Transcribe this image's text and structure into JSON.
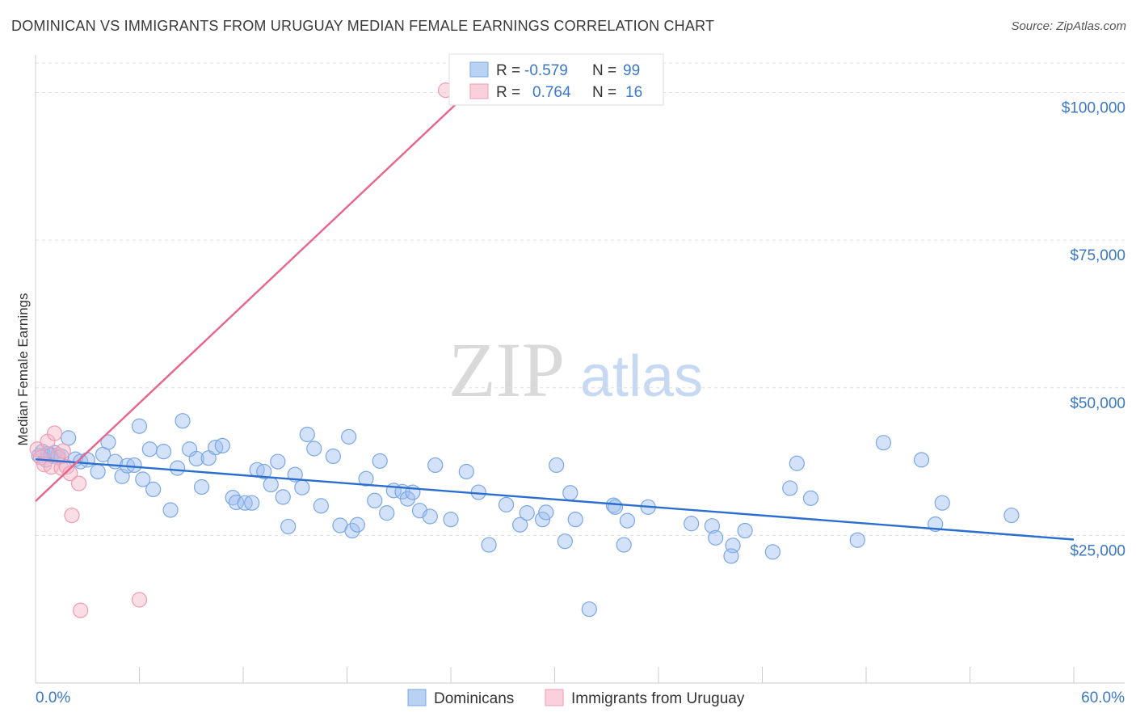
{
  "header": {
    "title": "DOMINICAN VS IMMIGRANTS FROM URUGUAY MEDIAN FEMALE EARNINGS CORRELATION CHART",
    "source": "Source: ZipAtlas.com"
  },
  "watermark": {
    "zip": "ZIP",
    "atlas": "atlas"
  },
  "legend": {
    "rows": [
      {
        "r_label": "R =",
        "r_value": "-0.579",
        "n_label": "N =",
        "n_value": "99",
        "color": "#9dbff0"
      },
      {
        "r_label": "R =",
        "r_value": "0.764",
        "n_label": "N =",
        "n_value": "16",
        "color": "#f5b5c8"
      }
    ]
  },
  "bottom_legend": [
    {
      "label": "Dominicans",
      "color": "#9dbff0"
    },
    {
      "label": "Immigrants from Uruguay",
      "color": "#f5b5c8"
    }
  ],
  "chart_data": {
    "type": "scatter",
    "xlabel": "",
    "ylabel": "Median Female Earnings",
    "xlim": [
      0,
      60
    ],
    "ylim": [
      0,
      105000
    ],
    "x_tick_labels": [
      "0.0%",
      "60.0%"
    ],
    "y_ticks": [
      25000,
      50000,
      75000,
      100000
    ],
    "y_tick_labels": [
      "$25,000",
      "$50,000",
      "$75,000",
      "$100,000"
    ],
    "grid": true,
    "series": [
      {
        "name": "Dominicans",
        "color": "#7aa7e6",
        "trend": {
          "x": [
            0,
            60
          ],
          "y": [
            37900,
            24300
          ],
          "color": "#2a6fd0"
        },
        "points": [
          [
            0.2,
            38500
          ],
          [
            0.4,
            39200
          ],
          [
            0.6,
            37800
          ],
          [
            0.9,
            38600
          ],
          [
            1.1,
            39000
          ],
          [
            1.5,
            38400
          ],
          [
            1.9,
            41500
          ],
          [
            2.3,
            37900
          ],
          [
            2.6,
            37500
          ],
          [
            3.0,
            37800
          ],
          [
            3.6,
            35800
          ],
          [
            3.9,
            38700
          ],
          [
            4.2,
            40800
          ],
          [
            4.6,
            37500
          ],
          [
            5.0,
            35000
          ],
          [
            5.3,
            36800
          ],
          [
            5.7,
            36900
          ],
          [
            6.0,
            43500
          ],
          [
            6.2,
            34500
          ],
          [
            6.6,
            39600
          ],
          [
            6.8,
            32800
          ],
          [
            7.4,
            39200
          ],
          [
            7.8,
            29300
          ],
          [
            8.2,
            36400
          ],
          [
            8.5,
            44400
          ],
          [
            8.9,
            39600
          ],
          [
            9.3,
            38000
          ],
          [
            9.6,
            33200
          ],
          [
            10.0,
            38100
          ],
          [
            10.4,
            39900
          ],
          [
            10.8,
            40200
          ],
          [
            11.4,
            31400
          ],
          [
            11.6,
            30600
          ],
          [
            12.1,
            30500
          ],
          [
            12.5,
            30500
          ],
          [
            12.8,
            36100
          ],
          [
            13.2,
            35800
          ],
          [
            13.6,
            33600
          ],
          [
            14.0,
            37500
          ],
          [
            14.3,
            31500
          ],
          [
            14.6,
            26500
          ],
          [
            15.0,
            35300
          ],
          [
            15.4,
            33100
          ],
          [
            15.7,
            42100
          ],
          [
            16.1,
            39700
          ],
          [
            16.5,
            30000
          ],
          [
            17.2,
            38400
          ],
          [
            17.6,
            26700
          ],
          [
            18.1,
            41700
          ],
          [
            18.3,
            25800
          ],
          [
            18.6,
            26800
          ],
          [
            19.1,
            34600
          ],
          [
            19.6,
            30900
          ],
          [
            19.9,
            37600
          ],
          [
            20.3,
            28800
          ],
          [
            20.7,
            32600
          ],
          [
            21.2,
            32400
          ],
          [
            21.5,
            31200
          ],
          [
            21.8,
            32300
          ],
          [
            22.2,
            29200
          ],
          [
            22.8,
            28200
          ],
          [
            23.1,
            36900
          ],
          [
            24.0,
            27700
          ],
          [
            24.9,
            35800
          ],
          [
            25.6,
            32300
          ],
          [
            26.2,
            23400
          ],
          [
            27.2,
            30200
          ],
          [
            28.0,
            26800
          ],
          [
            28.4,
            28800
          ],
          [
            29.3,
            27700
          ],
          [
            29.5,
            28900
          ],
          [
            30.1,
            36900
          ],
          [
            30.6,
            24000
          ],
          [
            30.9,
            32200
          ],
          [
            31.2,
            27700
          ],
          [
            32.0,
            12500
          ],
          [
            33.4,
            30100
          ],
          [
            33.5,
            29800
          ],
          [
            34.0,
            23400
          ],
          [
            34.2,
            27500
          ],
          [
            35.4,
            29800
          ],
          [
            37.9,
            27000
          ],
          [
            39.1,
            26600
          ],
          [
            39.3,
            24600
          ],
          [
            40.3,
            23300
          ],
          [
            40.2,
            21500
          ],
          [
            41.0,
            25800
          ],
          [
            42.6,
            22200
          ],
          [
            43.6,
            33000
          ],
          [
            44.0,
            37200
          ],
          [
            44.8,
            31300
          ],
          [
            47.5,
            24200
          ],
          [
            49.0,
            40700
          ],
          [
            51.2,
            37800
          ],
          [
            52.0,
            26900
          ],
          [
            52.4,
            30500
          ],
          [
            56.4,
            28400
          ],
          [
            1.3,
            38200
          ],
          [
            0.7,
            38800
          ]
        ]
      },
      {
        "name": "Immigrants from Uruguay",
        "color": "#f19ab3",
        "trend": {
          "x": [
            0,
            25
          ],
          "y": [
            30800,
            100000
          ],
          "color": "#e8648b"
        },
        "points": [
          [
            0.1,
            39600
          ],
          [
            0.3,
            38200
          ],
          [
            0.5,
            37000
          ],
          [
            0.7,
            40900
          ],
          [
            0.9,
            36600
          ],
          [
            1.1,
            42300
          ],
          [
            1.3,
            38600
          ],
          [
            1.5,
            36400
          ],
          [
            1.6,
            39300
          ],
          [
            1.8,
            36600
          ],
          [
            2.0,
            35500
          ],
          [
            2.1,
            28400
          ],
          [
            2.5,
            33800
          ],
          [
            2.6,
            12300
          ],
          [
            6.0,
            14100
          ],
          [
            23.7,
            100400
          ]
        ]
      }
    ]
  }
}
